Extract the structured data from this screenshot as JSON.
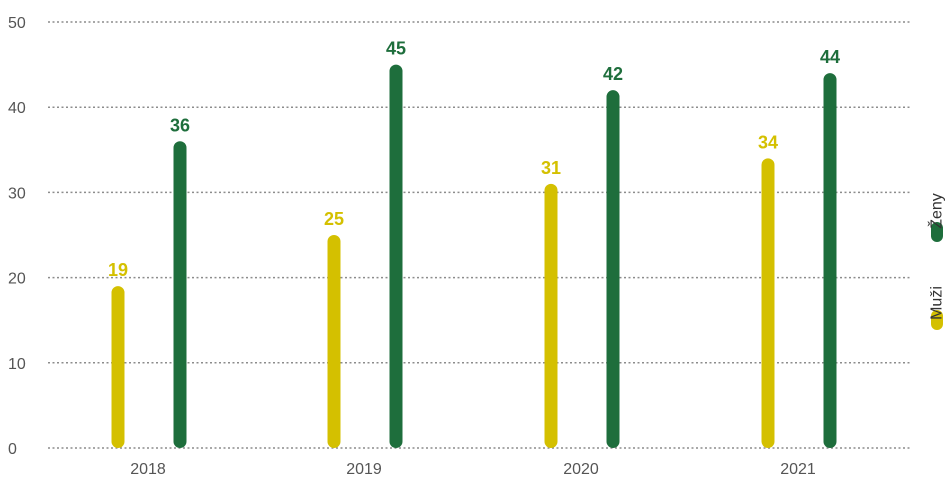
{
  "chart_data": {
    "type": "bar",
    "categories": [
      "2018",
      "2019",
      "2020",
      "2021"
    ],
    "series": [
      {
        "name": "Muži",
        "values": [
          19,
          25,
          31,
          34
        ],
        "color": "#d4c000"
      },
      {
        "name": "Ženy",
        "values": [
          36,
          45,
          42,
          44
        ],
        "color": "#1e6e3c"
      }
    ],
    "ylim": [
      0,
      50
    ],
    "yticks": [
      0,
      10,
      20,
      30,
      40,
      50
    ],
    "grid": true,
    "legend_position": "right, vertical"
  }
}
